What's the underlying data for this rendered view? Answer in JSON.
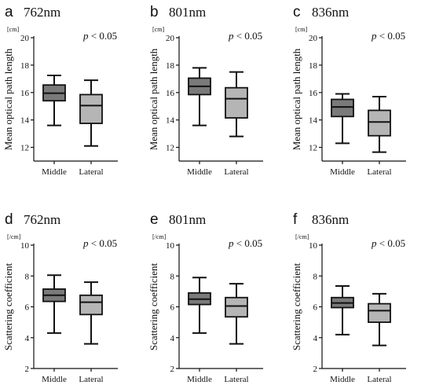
{
  "chart_data": [
    {
      "panel": "a",
      "title": "762nm",
      "type": "boxplot",
      "ylabel": "Mean optical path length",
      "unit": "[cm]",
      "ylim": [
        11,
        20
      ],
      "yticks": [
        12,
        14,
        16,
        18,
        20
      ],
      "annotation": {
        "p": "p",
        "rest": " < 0.05"
      },
      "categories": [
        "Middle",
        "Lateral"
      ],
      "boxes": [
        {
          "min": 13.6,
          "q1": 15.4,
          "median": 15.95,
          "q3": 16.55,
          "max": 17.25
        },
        {
          "min": 12.1,
          "q1": 13.75,
          "median": 15.05,
          "q3": 15.85,
          "max": 16.9
        }
      ]
    },
    {
      "panel": "b",
      "title": "801nm",
      "type": "boxplot",
      "ylabel": "Mean optical path length",
      "unit": "[cm]",
      "ylim": [
        11,
        20
      ],
      "yticks": [
        12,
        14,
        16,
        18,
        20
      ],
      "annotation": {
        "p": "p",
        "rest": " < 0.05"
      },
      "categories": [
        "Middle",
        "Lateral"
      ],
      "boxes": [
        {
          "min": 13.6,
          "q1": 15.85,
          "median": 16.45,
          "q3": 17.05,
          "max": 17.8
        },
        {
          "min": 12.8,
          "q1": 14.15,
          "median": 15.55,
          "q3": 16.35,
          "max": 17.5
        }
      ]
    },
    {
      "panel": "c",
      "title": "836nm",
      "type": "boxplot",
      "ylabel": "Mean optical path length",
      "unit": "[cm]",
      "ylim": [
        11,
        20
      ],
      "yticks": [
        12,
        14,
        16,
        18,
        20
      ],
      "annotation": {
        "p": "p",
        "rest": " < 0.05"
      },
      "categories": [
        "Middle",
        "Lateral"
      ],
      "boxes": [
        {
          "min": 12.3,
          "q1": 14.25,
          "median": 14.95,
          "q3": 15.5,
          "max": 15.9
        },
        {
          "min": 11.65,
          "q1": 12.85,
          "median": 13.85,
          "q3": 14.7,
          "max": 15.7
        }
      ]
    },
    {
      "panel": "d",
      "title": "762nm",
      "type": "boxplot",
      "ylabel": "Scattering coefficient",
      "unit": "[/cm]",
      "ylim": [
        2,
        10
      ],
      "yticks": [
        2,
        4,
        6,
        8,
        10
      ],
      "annotation": {
        "p": "p",
        "rest": " < 0.05"
      },
      "categories": [
        "Middle",
        "Lateral"
      ],
      "boxes": [
        {
          "min": 4.3,
          "q1": 6.35,
          "median": 6.75,
          "q3": 7.15,
          "max": 8.05
        },
        {
          "min": 3.6,
          "q1": 5.5,
          "median": 6.3,
          "q3": 6.75,
          "max": 7.6
        }
      ]
    },
    {
      "panel": "e",
      "title": "801nm",
      "type": "boxplot",
      "ylabel": "Scattering coefficient",
      "unit": "[/cm]",
      "ylim": [
        2,
        10
      ],
      "yticks": [
        2,
        4,
        6,
        8,
        10
      ],
      "annotation": {
        "p": "p",
        "rest": " < 0.05"
      },
      "categories": [
        "Middle",
        "Lateral"
      ],
      "boxes": [
        {
          "min": 4.3,
          "q1": 6.15,
          "median": 6.5,
          "q3": 6.9,
          "max": 7.9
        },
        {
          "min": 3.6,
          "q1": 5.35,
          "median": 6.05,
          "q3": 6.6,
          "max": 7.5
        }
      ]
    },
    {
      "panel": "f",
      "title": "836nm",
      "type": "boxplot",
      "ylabel": "Scattering coefficient",
      "unit": "[/cm]",
      "ylim": [
        2,
        10
      ],
      "yticks": [
        2,
        4,
        6,
        8,
        10
      ],
      "annotation": {
        "p": "p",
        "rest": " < 0.05"
      },
      "categories": [
        "Middle",
        "Lateral"
      ],
      "boxes": [
        {
          "min": 4.2,
          "q1": 5.95,
          "median": 6.25,
          "q3": 6.6,
          "max": 7.35
        },
        {
          "min": 3.5,
          "q1": 5.0,
          "median": 5.75,
          "q3": 6.2,
          "max": 6.85
        }
      ]
    }
  ],
  "colors": {
    "box_middle": "#7a7a7a",
    "box_lateral": "#b5b5b5",
    "ink": "#111111"
  }
}
